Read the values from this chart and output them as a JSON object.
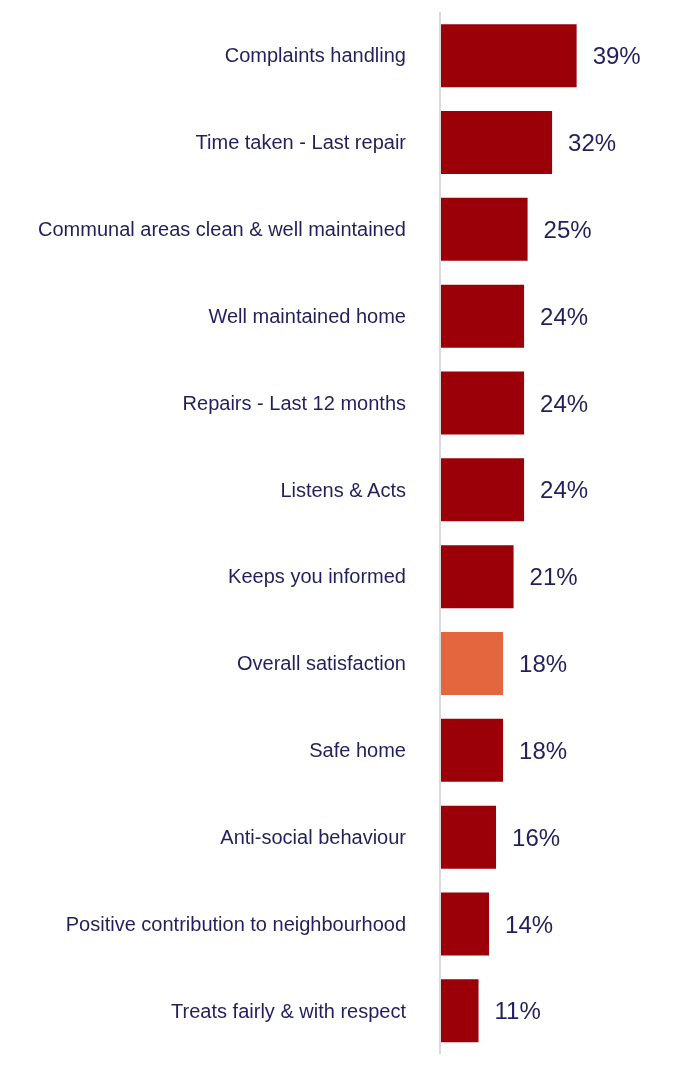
{
  "chart_data": {
    "type": "bar",
    "orientation": "horizontal",
    "categories": [
      "Complaints handling",
      "Time taken - Last repair",
      "Communal areas clean & well maintained",
      "Well maintained home",
      "Repairs - Last 12 months",
      "Listens & Acts",
      "Keeps you informed",
      "Overall satisfaction",
      "Safe home",
      "Anti-social behaviour",
      "Positive contribution to neighbourhood",
      "Treats fairly & with respect"
    ],
    "values": [
      39,
      32,
      25,
      24,
      24,
      24,
      21,
      18,
      18,
      16,
      14,
      11
    ],
    "colors": [
      "#9b0008",
      "#9b0008",
      "#9b0008",
      "#9b0008",
      "#9b0008",
      "#9b0008",
      "#9b0008",
      "#e4663f",
      "#9b0008",
      "#9b0008",
      "#9b0008",
      "#9b0008"
    ],
    "value_labels": [
      "39%",
      "32%",
      "25%",
      "24%",
      "24%",
      "24%",
      "21%",
      "18%",
      "18%",
      "16%",
      "14%",
      "11%"
    ]
  }
}
